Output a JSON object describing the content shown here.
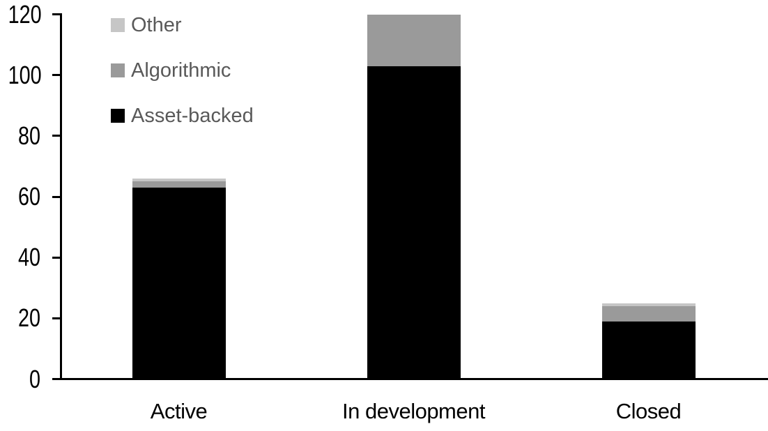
{
  "chart_data": {
    "type": "bar",
    "stacked": true,
    "title": "",
    "xlabel": "",
    "ylabel": "",
    "categories": [
      "Active",
      "In development",
      "Closed"
    ],
    "series": [
      {
        "name": "Asset-backed",
        "color": "#000000",
        "values": [
          63,
          103,
          19
        ]
      },
      {
        "name": "Algorithmic",
        "color": "#9a9a9a",
        "values": [
          2,
          17,
          5
        ]
      },
      {
        "name": "Other",
        "color": "#c6c6c6",
        "values": [
          1,
          0,
          1
        ]
      }
    ],
    "totals": [
      66,
      120,
      25
    ],
    "ylim": [
      0,
      120
    ],
    "yticks": [
      0,
      20,
      40,
      60,
      80,
      100,
      120
    ],
    "grid": false,
    "legend_position": "top-left",
    "legend_order": [
      "Other",
      "Algorithmic",
      "Asset-backed"
    ],
    "axis_color": "#000000",
    "tick_label_color": "#000000",
    "category_label_color": "#000000",
    "legend_text_color": "#595959",
    "background_color": "#ffffff"
  }
}
